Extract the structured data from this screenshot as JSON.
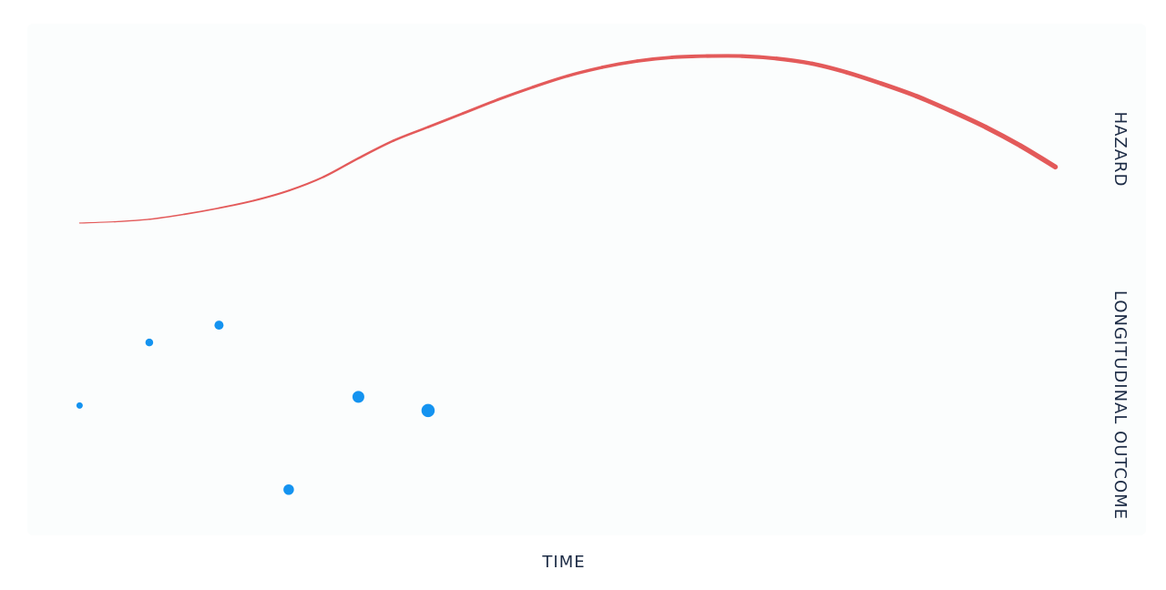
{
  "chart_data": [
    {
      "type": "line",
      "panel": "top",
      "title": "",
      "xlabel": "TIME",
      "ylabel": "HAZARD",
      "grid": false,
      "legend": "none",
      "color": "#e35a5a",
      "series": [
        {
          "x": [
            0.0,
            0.5,
            1.0,
            1.5,
            2.0,
            2.5,
            3.0,
            3.5,
            4.0,
            4.5,
            5.0,
            5.5,
            6.0,
            6.5,
            7.0,
            7.5,
            8.0,
            8.5,
            9.0,
            9.5,
            10.0,
            10.5,
            11.0,
            11.5,
            12.0,
            12.5,
            13.0,
            13.5,
            14.0
          ],
          "y": [
            0.0,
            0.01,
            0.03,
            0.07,
            0.12,
            0.18,
            0.26,
            0.37,
            0.52,
            0.66,
            0.77,
            0.88,
            0.99,
            1.09,
            1.18,
            1.25,
            1.3,
            1.33,
            1.34,
            1.34,
            1.32,
            1.28,
            1.21,
            1.12,
            1.02,
            0.9,
            0.77,
            0.62,
            0.45
          ]
        }
      ],
      "ylim": [
        -0.3,
        1.6
      ],
      "xlim": [
        -0.75,
        15.3
      ]
    },
    {
      "type": "scatter",
      "panel": "bottom",
      "title": "",
      "xlabel": "TIME",
      "ylabel": "LONGITUDINAL OUTCOME",
      "grid": false,
      "legend": "none",
      "color": "#1493f0",
      "series": [
        {
          "x": [
            0,
            1,
            2,
            3,
            4,
            5
          ],
          "y": [
            0.9,
            1.92,
            2.2,
            -0.46,
            1.04,
            0.82
          ],
          "size": [
            1,
            2,
            3,
            4,
            5,
            6
          ]
        }
      ],
      "ylim": [
        -1.2,
        3.1
      ],
      "xlim": [
        -0.75,
        15.3
      ]
    }
  ]
}
